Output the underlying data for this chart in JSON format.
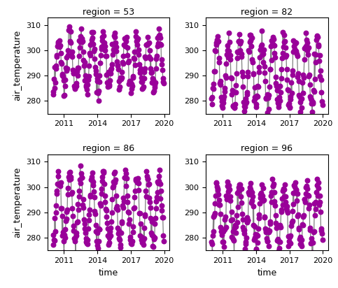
{
  "regions": [
    53,
    82,
    86,
    96
  ],
  "start_year": 2010,
  "n_years": 10,
  "dot_color": "#990099",
  "line_color": "#808080",
  "title_template": "region = {}",
  "xlabel": "time",
  "ylabel": "air_temperature",
  "ylim": [
    275,
    313
  ],
  "xticks": [
    2011,
    2014,
    2017,
    2020
  ],
  "yticks": [
    280,
    290,
    300,
    310
  ],
  "dot_size": 22,
  "line_width": 0.9,
  "base_temps": {
    "53": 295,
    "82": 291,
    "86": 291,
    "96": 289
  },
  "amplitudes": {
    "53": 10,
    "82": 13,
    "86": 13,
    "96": 11
  },
  "noise_std": 2.0
}
